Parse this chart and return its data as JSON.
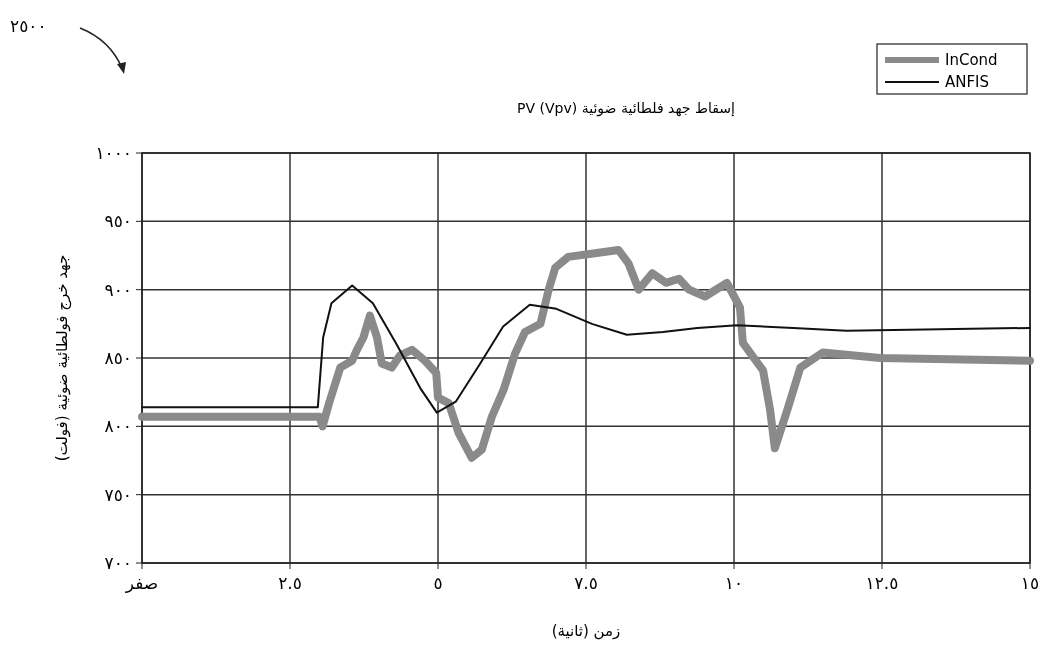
{
  "chart_data": {
    "type": "line",
    "title": "إسقاط جهد فلطائية ضوئية PV (Vpv)",
    "xlabel": "زمن (ثانية)",
    "ylabel": "جهد خرج فولطائية ضوئية (فولت)",
    "annotations": [
      "٢٥٠٠"
    ],
    "xlim": [
      0,
      15
    ],
    "xticks": [
      {
        "value": 0,
        "label": "صفر"
      },
      {
        "value": 2.5,
        "label": "٢.٥"
      },
      {
        "value": 5,
        "label": "٥"
      },
      {
        "value": 7.5,
        "label": "٧.٥"
      },
      {
        "value": 10,
        "label": "١٠"
      },
      {
        "value": 12.5,
        "label": "١٢.٥"
      },
      {
        "value": 15,
        "label": "١٥"
      }
    ],
    "ylim": [
      700,
      1000
    ],
    "yticks": [
      {
        "value": 700,
        "label": "٧٠٠"
      },
      {
        "value": 750,
        "label": "٧٥٠"
      },
      {
        "value": 800,
        "label": "٨٠٠"
      },
      {
        "value": 850,
        "label": "٨٥٠"
      },
      {
        "value": 900,
        "label": "٩٠٠"
      },
      {
        "value": 950,
        "label": "٩٥٠"
      },
      {
        "value": 1000,
        "label": "١٠٠٠"
      }
    ],
    "grid": true,
    "legend": "top right",
    "marker": "none",
    "line_style": "solid",
    "series": [
      {
        "name": "InCond",
        "color": "#8a8a8a",
        "x": [
          0,
          3.0,
          3.05,
          3.16,
          3.35,
          3.55,
          3.63,
          3.74,
          3.85,
          3.97,
          4.05,
          4.22,
          4.36,
          4.56,
          4.78,
          4.97,
          5.0,
          5.18,
          5.35,
          5.57,
          5.74,
          5.91,
          6.11,
          6.3,
          6.47,
          6.73,
          6.87,
          6.98,
          7.2,
          7.71,
          8.05,
          8.22,
          8.39,
          8.62,
          8.85,
          9.07,
          9.24,
          9.51,
          9.88,
          10.1,
          10.15,
          10.49,
          10.61,
          10.69,
          10.9,
          11.12,
          11.5,
          12.47,
          15
        ],
        "values": [
          807,
          807,
          800,
          817,
          843,
          848,
          856,
          865,
          881,
          865,
          846,
          843,
          852,
          856,
          848,
          839,
          821,
          817,
          795,
          777,
          783,
          807,
          827,
          853,
          869,
          875,
          900,
          916,
          924,
          927,
          929,
          919,
          900,
          912,
          905,
          908,
          900,
          895,
          905,
          887,
          861,
          841,
          812,
          784,
          812,
          843,
          854,
          850,
          848
        ]
      },
      {
        "name": "ANFIS",
        "color": "#111111",
        "x": [
          0,
          2.97,
          3.06,
          3.2,
          3.55,
          3.9,
          4.3,
          4.7,
          4.98,
          5.3,
          5.7,
          6.1,
          6.55,
          7.0,
          7.6,
          8.19,
          8.8,
          9.38,
          10.05,
          11.0,
          11.9,
          15
        ],
        "values": [
          814,
          814,
          865,
          890,
          903,
          890,
          860,
          828,
          810,
          818,
          845,
          873,
          889,
          886,
          875,
          867,
          869,
          872,
          874,
          872,
          870,
          872
        ]
      }
    ]
  }
}
